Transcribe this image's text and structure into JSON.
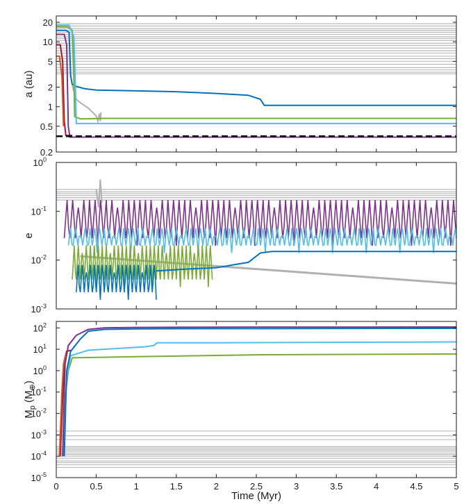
{
  "figure": {
    "xlabel": "Time (Myr)",
    "x_ticks": [
      "0",
      "0.5",
      "1",
      "1.5",
      "2",
      "2.5",
      "3",
      "3.5",
      "4",
      "4.5",
      "5"
    ]
  },
  "chart_data": [
    {
      "type": "line",
      "panel": "top",
      "ylabel": "a (au)",
      "yscale": "log",
      "xlim": [
        0,
        5
      ],
      "ylim": [
        0.2,
        25
      ],
      "y_ticks": [
        {
          "v": 0.2,
          "label": "0.2"
        },
        {
          "v": 0.5,
          "label": "0.5"
        },
        {
          "v": 1,
          "label": "1"
        },
        {
          "v": 2,
          "label": "2"
        },
        {
          "v": 5,
          "label": "5"
        },
        {
          "v": 10,
          "label": "10"
        },
        {
          "v": 20,
          "label": "20"
        }
      ],
      "grey_levels": [
        19,
        17.5,
        16,
        15,
        14,
        13,
        12,
        11.3,
        10.5,
        9.5,
        8.8,
        8,
        7.3,
        6.7,
        6,
        5.5,
        5,
        4.5,
        4,
        3.7,
        3.4,
        3.2
      ],
      "reference_line": {
        "y": 0.35,
        "style": "dashed",
        "color": "#000000"
      },
      "series": [
        {
          "color": "#b0b0b0",
          "points": [
            [
              0.2,
              2.1
            ],
            [
              0.25,
              1.3
            ],
            [
              0.3,
              1.15
            ],
            [
              0.4,
              0.95
            ],
            [
              0.5,
              0.72
            ],
            [
              0.52,
              0.6
            ],
            [
              0.54,
              0.78
            ],
            [
              0.55,
              0.6
            ]
          ]
        },
        {
          "color": "#b0b0b0",
          "points": [
            [
              0.55,
              0.6
            ],
            [
              0.56,
              0.82
            ]
          ]
        },
        {
          "color": "#0072bd",
          "points": [
            [
              0,
              15
            ],
            [
              0.12,
              15
            ],
            [
              0.16,
              14
            ],
            [
              0.18,
              3
            ],
            [
              0.2,
              2.2
            ],
            [
              0.25,
              2.05
            ],
            [
              0.35,
              1.9
            ],
            [
              0.5,
              1.8
            ],
            [
              1,
              1.75
            ],
            [
              1.5,
              1.7
            ],
            [
              2,
              1.6
            ],
            [
              2.4,
              1.5
            ],
            [
              2.55,
              1.3
            ],
            [
              2.6,
              1.05
            ],
            [
              5,
              1.05
            ]
          ]
        },
        {
          "color": "#77ac30",
          "points": [
            [
              0,
              17
            ],
            [
              0.14,
              17
            ],
            [
              0.2,
              15
            ],
            [
              0.22,
              3
            ],
            [
              0.23,
              0.7
            ],
            [
              0.3,
              0.65
            ],
            [
              0.6,
              0.66
            ],
            [
              2.5,
              0.66
            ],
            [
              5,
              0.66
            ]
          ]
        },
        {
          "color": "#4dbeee",
          "points": [
            [
              0,
              18
            ],
            [
              0.16,
              18
            ],
            [
              0.22,
              12
            ],
            [
              0.24,
              2
            ],
            [
              0.25,
              0.55
            ],
            [
              5,
              0.55
            ]
          ]
        },
        {
          "color": "#7e2f8e",
          "points": [
            [
              0,
              13
            ],
            [
              0.1,
              13
            ],
            [
              0.13,
              9
            ],
            [
              0.15,
              0.5
            ],
            [
              0.17,
              0.34
            ],
            [
              5,
              0.34
            ]
          ]
        },
        {
          "color": "#a2142f",
          "points": [
            [
              0,
              9
            ],
            [
              0.05,
              9
            ],
            [
              0.08,
              5
            ],
            [
              0.1,
              0.6
            ],
            [
              0.12,
              0.36
            ],
            [
              0.2,
              0.36
            ]
          ]
        },
        {
          "color": "#d95319",
          "points": [
            [
              0,
              6
            ],
            [
              0.04,
              6
            ],
            [
              0.07,
              3
            ],
            [
              0.09,
              0.5
            ]
          ]
        }
      ]
    },
    {
      "type": "line",
      "panel": "middle",
      "ylabel": "e",
      "yscale": "log",
      "xlim": [
        0,
        5
      ],
      "ylim": [
        0.001,
        1
      ],
      "y_ticks": [
        {
          "v": 0.001,
          "label": "10",
          "exp": "-3"
        },
        {
          "v": 0.01,
          "label": "10",
          "exp": "-2"
        },
        {
          "v": 0.1,
          "label": "10",
          "exp": "-1"
        },
        {
          "v": 1,
          "label": "10",
          "exp": "0"
        }
      ],
      "grey_levels": [
        0.28,
        0.25,
        0.23,
        0.21,
        0.19,
        0.17
      ],
      "decay_curve": {
        "color": "#b0b0b0",
        "start": [
          0.3,
          0.012
        ],
        "end": [
          5,
          0.0033
        ]
      },
      "oscillating_series": [
        {
          "color": "#7e2f8e",
          "x_start": 0.1,
          "x_end": 5,
          "low": 0.028,
          "high": 0.17,
          "period": 0.07
        },
        {
          "color": "#4dbeee",
          "x_start": 0.15,
          "x_end": 5,
          "low": 0.02,
          "high": 0.045,
          "period": 0.06
        },
        {
          "color": "#77ac30",
          "x_start": 0.2,
          "x_end": 1.95,
          "low": 0.004,
          "high": 0.02,
          "period": 0.05
        },
        {
          "color": "#0072bd",
          "x_start": 0.25,
          "x_end": 1.25,
          "low": 0.0022,
          "high": 0.008,
          "period": 0.05
        }
      ],
      "series": [
        {
          "color": "#0072bd",
          "points": [
            [
              1.25,
              0.006
            ],
            [
              1.6,
              0.0065
            ],
            [
              2,
              0.007
            ],
            [
              2.4,
              0.009
            ],
            [
              2.55,
              0.014
            ],
            [
              2.7,
              0.015
            ],
            [
              3.5,
              0.015
            ],
            [
              5,
              0.015
            ]
          ]
        },
        {
          "color": "#b0b0b0",
          "points": [
            [
              0.5,
              0.28
            ],
            [
              0.53,
              0.12
            ],
            [
              0.55,
              0.45
            ],
            [
              0.57,
              0.15
            ]
          ]
        }
      ]
    },
    {
      "type": "line",
      "panel": "bottom",
      "ylabel": "M",
      "ylabel_sub": "p",
      "ylabel_unit": "(M",
      "ylabel_unit_sub": "⊕",
      "ylabel_close": ")",
      "yscale": "log",
      "xlim": [
        0,
        5
      ],
      "ylim": [
        1e-05,
        200
      ],
      "y_ticks": [
        {
          "v": 1e-05,
          "label": "10",
          "exp": "-5"
        },
        {
          "v": 0.0001,
          "label": "10",
          "exp": "-4"
        },
        {
          "v": 0.001,
          "label": "10",
          "exp": "-3"
        },
        {
          "v": 0.01,
          "label": "10",
          "exp": "-2"
        },
        {
          "v": 0.1,
          "label": "10",
          "exp": "-1"
        },
        {
          "v": 1,
          "label": "10",
          "exp": "0"
        },
        {
          "v": 10,
          "label": "10",
          "exp": "1"
        },
        {
          "v": 100,
          "label": "10",
          "exp": "2"
        }
      ],
      "grey_levels": [
        0.0015,
        0.0009,
        0.0006,
        0.00028,
        0.00024,
        0.0002,
        0.00017,
        0.00014,
        0.00012,
        0.0001,
        8e-05,
        6e-05,
        5e-05,
        4e-05,
        3e-05
      ],
      "series": [
        {
          "color": "#a2142f",
          "points": [
            [
              0.05,
              0.0001
            ],
            [
              0.08,
              0.05
            ],
            [
              0.1,
              3
            ],
            [
              0.13,
              8
            ],
            [
              0.18,
              9
            ]
          ]
        },
        {
          "color": "#d95319",
          "points": [
            [
              0.04,
              0.0001
            ],
            [
              0.07,
              0.1
            ],
            [
              0.09,
              2
            ],
            [
              0.12,
              6
            ]
          ]
        },
        {
          "color": "#77ac30",
          "points": [
            [
              0.08,
              0.0001
            ],
            [
              0.12,
              0.1
            ],
            [
              0.15,
              1
            ],
            [
              0.2,
              4
            ],
            [
              1,
              4.5
            ],
            [
              2.5,
              5.5
            ],
            [
              5,
              6
            ]
          ]
        },
        {
          "color": "#4dbeee",
          "points": [
            [
              0.09,
              0.0001
            ],
            [
              0.13,
              0.5
            ],
            [
              0.18,
              5
            ],
            [
              0.4,
              9
            ],
            [
              1.1,
              13
            ],
            [
              1.22,
              15
            ],
            [
              1.26,
              20
            ],
            [
              2,
              20
            ],
            [
              5,
              22
            ]
          ]
        },
        {
          "color": "#0072bd",
          "points": [
            [
              0.1,
              0.0001
            ],
            [
              0.13,
              1
            ],
            [
              0.18,
              8
            ],
            [
              0.3,
              30
            ],
            [
              0.4,
              70
            ],
            [
              0.6,
              85
            ],
            [
              1,
              90
            ],
            [
              2,
              92
            ],
            [
              5,
              95
            ]
          ]
        },
        {
          "color": "#7e2f8e",
          "points": [
            [
              0.08,
              0.0001
            ],
            [
              0.11,
              2
            ],
            [
              0.15,
              15
            ],
            [
              0.25,
              45
            ],
            [
              0.4,
              85
            ],
            [
              0.6,
              100
            ],
            [
              1,
              105
            ],
            [
              2,
              108
            ],
            [
              5,
              110
            ]
          ]
        }
      ]
    }
  ]
}
